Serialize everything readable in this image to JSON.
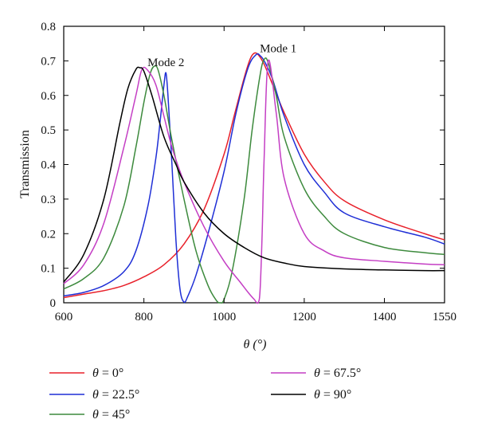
{
  "chart_data": {
    "type": "line",
    "xlabel": "θ (°)",
    "ylabel": "Transmission",
    "xlim": [
      600,
      1550
    ],
    "ylim": [
      0,
      0.8
    ],
    "xticks": [
      600,
      800,
      1000,
      1200,
      1400,
      1550
    ],
    "yticks": [
      0,
      0.1,
      0.2,
      0.3,
      0.4,
      0.5,
      0.6,
      0.7,
      0.8
    ],
    "xtick_labels": [
      "600",
      "800",
      "1000",
      "1200",
      "1400",
      "1550"
    ],
    "ytick_labels": [
      "0",
      "0.1",
      "0.2",
      "0.3",
      "0.4",
      "0.5",
      "0.6",
      "0.7",
      "0.8"
    ],
    "grid": false,
    "legend_placement": "below-plot",
    "annotations": [
      {
        "text": "Mode 1",
        "x": 1135,
        "y": 0.725
      },
      {
        "text": "Mode 2",
        "x": 855,
        "y": 0.685
      }
    ],
    "series": [
      {
        "name": "θ = 0°",
        "legend_symbol": "θ",
        "legend_value": " = 0°",
        "color": "#e8202a",
        "x": [
          600,
          650,
          700,
          750,
          800,
          850,
          900,
          950,
          1000,
          1025,
          1050,
          1065,
          1075,
          1085,
          1100,
          1125,
          1150,
          1200,
          1250,
          1300,
          1400,
          1500,
          1550
        ],
        "y": [
          0.015,
          0.025,
          0.035,
          0.05,
          0.075,
          0.11,
          0.17,
          0.27,
          0.43,
          0.54,
          0.65,
          0.705,
          0.722,
          0.718,
          0.69,
          0.62,
          0.55,
          0.43,
          0.35,
          0.295,
          0.24,
          0.2,
          0.182
        ]
      },
      {
        "name": "θ = 22.5°",
        "legend_symbol": "θ",
        "legend_value": " = 22.5°",
        "color": "#1f2fd6",
        "x": [
          600,
          650,
          700,
          750,
          780,
          810,
          830,
          840,
          850,
          855,
          860,
          870,
          880,
          890,
          900,
          910,
          930,
          960,
          1000,
          1030,
          1060,
          1080,
          1090,
          1100,
          1120,
          1150,
          1200,
          1250,
          1300,
          1400,
          1500,
          1550
        ],
        "y": [
          0.02,
          0.03,
          0.05,
          0.09,
          0.15,
          0.28,
          0.42,
          0.52,
          0.63,
          0.665,
          0.6,
          0.4,
          0.18,
          0.04,
          0.002,
          0.02,
          0.08,
          0.2,
          0.38,
          0.55,
          0.68,
          0.718,
          0.715,
          0.7,
          0.65,
          0.54,
          0.4,
          0.32,
          0.26,
          0.22,
          0.19,
          0.17
        ]
      },
      {
        "name": "θ = 45°",
        "legend_symbol": "θ",
        "legend_value": " = 45°",
        "color": "#3d8a3d",
        "x": [
          600,
          650,
          700,
          750,
          780,
          800,
          815,
          825,
          835,
          850,
          870,
          900,
          930,
          960,
          980,
          990,
          1000,
          1020,
          1050,
          1070,
          1090,
          1100,
          1110,
          1130,
          1150,
          1200,
          1250,
          1300,
          1400,
          1500,
          1550
        ],
        "y": [
          0.04,
          0.07,
          0.13,
          0.28,
          0.45,
          0.58,
          0.66,
          0.684,
          0.675,
          0.6,
          0.47,
          0.3,
          0.15,
          0.05,
          0.008,
          0.0,
          0.01,
          0.09,
          0.3,
          0.5,
          0.66,
          0.704,
          0.695,
          0.6,
          0.48,
          0.33,
          0.25,
          0.2,
          0.16,
          0.145,
          0.14
        ]
      },
      {
        "name": "θ = 67.5°",
        "legend_symbol": "θ",
        "legend_value": " = 67.5°",
        "color": "#c43ec4",
        "x": [
          600,
          650,
          700,
          750,
          780,
          795,
          810,
          830,
          850,
          870,
          900,
          950,
          1000,
          1040,
          1060,
          1075,
          1085,
          1090,
          1095,
          1100,
          1110,
          1130,
          1150,
          1200,
          1250,
          1300,
          1400,
          1500,
          1550
        ],
        "y": [
          0.055,
          0.11,
          0.23,
          0.45,
          0.6,
          0.675,
          0.672,
          0.63,
          0.54,
          0.45,
          0.35,
          0.22,
          0.12,
          0.06,
          0.03,
          0.01,
          0.0,
          0.04,
          0.2,
          0.42,
          0.7,
          0.55,
          0.36,
          0.2,
          0.15,
          0.13,
          0.12,
          0.112,
          0.11
        ]
      },
      {
        "name": "θ = 90°",
        "legend_symbol": "θ",
        "legend_value": " = 90°",
        "color": "#000000",
        "x": [
          600,
          650,
          700,
          740,
          760,
          780,
          790,
          800,
          820,
          850,
          880,
          900,
          950,
          1000,
          1050,
          1100,
          1150,
          1200,
          1300,
          1400,
          1500,
          1550
        ],
        "y": [
          0.06,
          0.14,
          0.3,
          0.52,
          0.62,
          0.675,
          0.68,
          0.67,
          0.6,
          0.48,
          0.4,
          0.35,
          0.26,
          0.2,
          0.16,
          0.13,
          0.115,
          0.105,
          0.098,
          0.095,
          0.093,
          0.093
        ]
      }
    ]
  }
}
